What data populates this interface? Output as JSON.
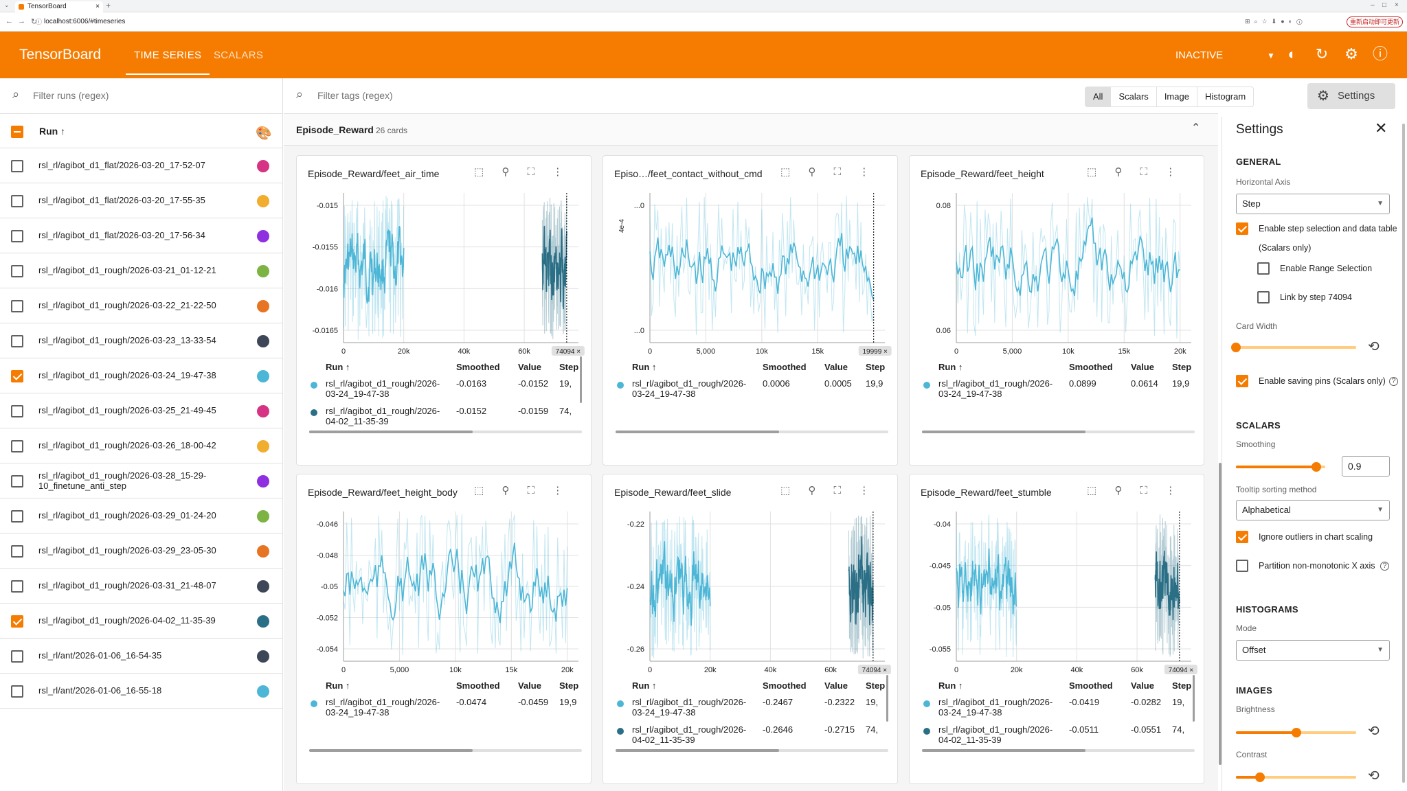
{
  "browser": {
    "tab_title": "TensorBoard",
    "url": "localhost:6006/#timeseries",
    "relaunch_label": "重新启动即可更新"
  },
  "header": {
    "brand": "TensorBoard",
    "tabs": [
      {
        "label": "TIME SERIES"
      },
      {
        "label": "SCALARS"
      }
    ],
    "status": "INACTIVE"
  },
  "runs_panel": {
    "filter_placeholder": "Filter runs (regex)",
    "column_label": "Run ↑",
    "runs": [
      {
        "name": "rsl_rl/agibot_d1_flat/2026-03-20_17-52-07",
        "checked": false,
        "color": "#d63384"
      },
      {
        "name": "rsl_rl/agibot_d1_flat/2026-03-20_17-55-35",
        "checked": false,
        "color": "#f0ad2e"
      },
      {
        "name": "rsl_rl/agibot_d1_flat/2026-03-20_17-56-34",
        "checked": false,
        "color": "#8e2fe0"
      },
      {
        "name": "rsl_rl/agibot_d1_rough/2026-03-21_01-12-21",
        "checked": false,
        "color": "#7cb342"
      },
      {
        "name": "rsl_rl/agibot_d1_rough/2026-03-22_21-22-50",
        "checked": false,
        "color": "#e67423"
      },
      {
        "name": "rsl_rl/agibot_d1_rough/2026-03-23_13-33-54",
        "checked": false,
        "color": "#3d4758"
      },
      {
        "name": "rsl_rl/agibot_d1_rough/2026-03-24_19-47-38",
        "checked": true,
        "color": "#4db6d6"
      },
      {
        "name": "rsl_rl/agibot_d1_rough/2026-03-25_21-49-45",
        "checked": false,
        "color": "#d63384"
      },
      {
        "name": "rsl_rl/agibot_d1_rough/2026-03-26_18-00-42",
        "checked": false,
        "color": "#f0ad2e"
      },
      {
        "name": "rsl_rl/agibot_d1_rough/2026-03-28_15-29-10_finetune_anti_step",
        "checked": false,
        "color": "#8e2fe0"
      },
      {
        "name": "rsl_rl/agibot_d1_rough/2026-03-29_01-24-20",
        "checked": false,
        "color": "#7cb342"
      },
      {
        "name": "rsl_rl/agibot_d1_rough/2026-03-29_23-05-30",
        "checked": false,
        "color": "#e67423"
      },
      {
        "name": "rsl_rl/agibot_d1_rough/2026-03-31_21-48-07",
        "checked": false,
        "color": "#3d4758"
      },
      {
        "name": "rsl_rl/agibot_d1_rough/2026-04-02_11-35-39",
        "checked": true,
        "color": "#2b6f86"
      },
      {
        "name": "rsl_rl/ant/2026-01-06_16-54-35",
        "checked": false,
        "color": "#3d4758"
      },
      {
        "name": "rsl_rl/ant/2026-01-06_16-55-18",
        "checked": false,
        "color": "#4db6d6"
      }
    ]
  },
  "main": {
    "filter_placeholder": "Filter tags (regex)",
    "type_toggles": [
      {
        "label": "All",
        "selected": true
      },
      {
        "label": "Scalars"
      },
      {
        "label": "Image"
      },
      {
        "label": "Histogram"
      }
    ],
    "settings_button": "Settings",
    "group_title": "Episode_Reward",
    "group_count": "26 cards",
    "table_headers": {
      "run": "Run ↑",
      "smoothed": "Smoothed",
      "value": "Value",
      "step": "Step"
    },
    "cards": [
      {
        "title": "Episode_Reward/feet_air_time",
        "rows": [
          {
            "run": "rsl_rl/agibot_d1_rough/2026-03-24_19-47-38",
            "smoothed": "-0.0163",
            "value": "-0.0152",
            "step": "19,",
            "color": "#4db6d6"
          },
          {
            "run": "rsl_rl/agibot_d1_rough/2026-04-02_11-35-39",
            "smoothed": "-0.0152",
            "value": "-0.0159",
            "step": "74,",
            "color": "#2b6f86"
          }
        ]
      },
      {
        "title": "Episo…/feet_contact_without_cmd",
        "rows": [
          {
            "run": "rsl_rl/agibot_d1_rough/2026-03-24_19-47-38",
            "smoothed": "0.0006",
            "value": "0.0005",
            "step": "19,9",
            "color": "#4db6d6"
          }
        ]
      },
      {
        "title": "Episode_Reward/feet_height",
        "rows": [
          {
            "run": "rsl_rl/agibot_d1_rough/2026-03-24_19-47-38",
            "smoothed": "0.0899",
            "value": "0.0614",
            "step": "19,9",
            "color": "#4db6d6"
          }
        ]
      },
      {
        "title": "Episode_Reward/feet_height_body",
        "rows": [
          {
            "run": "rsl_rl/agibot_d1_rough/2026-03-24_19-47-38",
            "smoothed": "-0.0474",
            "value": "-0.0459",
            "step": "19,9",
            "color": "#4db6d6"
          }
        ]
      },
      {
        "title": "Episode_Reward/feet_slide",
        "rows": [
          {
            "run": "rsl_rl/agibot_d1_rough/2026-03-24_19-47-38",
            "smoothed": "-0.2467",
            "value": "-0.2322",
            "step": "19,",
            "color": "#4db6d6"
          },
          {
            "run": "rsl_rl/agibot_d1_rough/2026-04-02_11-35-39",
            "smoothed": "-0.2646",
            "value": "-0.2715",
            "step": "74,",
            "color": "#2b6f86"
          }
        ]
      },
      {
        "title": "Episode_Reward/feet_stumble",
        "rows": [
          {
            "run": "rsl_rl/agibot_d1_rough/2026-03-24_19-47-38",
            "smoothed": "-0.0419",
            "value": "-0.0282",
            "step": "19,",
            "color": "#4db6d6"
          },
          {
            "run": "rsl_rl/agibot_d1_rough/2026-04-02_11-35-39",
            "smoothed": "-0.0511",
            "value": "-0.0551",
            "step": "74,",
            "color": "#2b6f86"
          }
        ]
      }
    ]
  },
  "chart_data": [
    {
      "type": "line",
      "title": "Episode_Reward/feet_air_time",
      "x_ticks": [
        "0",
        "20k",
        "40k",
        "60k"
      ],
      "y_ticks": [
        "-0.015",
        "-0.0155",
        "-0.016",
        "-0.0165"
      ],
      "step_marker": "74094",
      "series": [
        {
          "name": "rsl_rl/agibot_d1_rough/2026-03-24_19-47-38",
          "color": "#4db6d6",
          "x_range": [
            0,
            19999
          ],
          "y_range": [
            -0.0167,
            -0.0149
          ]
        },
        {
          "name": "rsl_rl/agibot_d1_rough/2026-04-02_11-35-39",
          "color": "#2b6f86",
          "x_range": [
            66000,
            74094
          ],
          "y_range": [
            -0.0162,
            -0.0148
          ]
        }
      ]
    },
    {
      "type": "line",
      "title": "Episo…/feet_contact_without_cmd",
      "x_ticks": [
        "0",
        "5,000",
        "10k",
        "15k"
      ],
      "y_ticks": [
        "...0",
        "...0"
      ],
      "y_unit": "4e-4",
      "step_marker": "19999",
      "series": [
        {
          "name": "rsl_rl/agibot_d1_rough/2026-03-24_19-47-38",
          "color": "#4db6d6",
          "x_range": [
            0,
            19999
          ]
        }
      ]
    },
    {
      "type": "line",
      "title": "Episode_Reward/feet_height",
      "x_ticks": [
        "0",
        "5,000",
        "10k",
        "15k",
        "20k"
      ],
      "y_ticks": [
        "0.08",
        "0.06"
      ],
      "series": [
        {
          "name": "rsl_rl/agibot_d1_rough/2026-03-24_19-47-38",
          "color": "#4db6d6",
          "x_range": [
            0,
            19999
          ],
          "y_range": [
            0.045,
            0.095
          ]
        }
      ]
    },
    {
      "type": "line",
      "title": "Episode_Reward/feet_height_body",
      "x_ticks": [
        "0",
        "5,000",
        "10k",
        "15k",
        "20k"
      ],
      "y_ticks": [
        "-0.046",
        "-0.048",
        "-0.05",
        "-0.052",
        "-0.054"
      ],
      "series": [
        {
          "name": "rsl_rl/agibot_d1_rough/2026-03-24_19-47-38",
          "color": "#4db6d6",
          "x_range": [
            0,
            19999
          ],
          "y_range": [
            -0.0555,
            -0.0455
          ]
        }
      ]
    },
    {
      "type": "line",
      "title": "Episode_Reward/feet_slide",
      "x_ticks": [
        "0",
        "20k",
        "40k",
        "60k"
      ],
      "y_ticks": [
        "-0.22",
        "-0.24",
        "-0.26"
      ],
      "step_marker": "74094",
      "series": [
        {
          "name": "rsl_rl/agibot_d1_rough/2026-03-24_19-47-38",
          "color": "#4db6d6",
          "x_range": [
            0,
            19999
          ],
          "y_range": [
            -0.27,
            -0.21
          ]
        },
        {
          "name": "rsl_rl/agibot_d1_rough/2026-04-02_11-35-39",
          "color": "#2b6f86",
          "x_range": [
            66000,
            74094
          ],
          "y_range": [
            -0.28,
            -0.255
          ]
        }
      ]
    },
    {
      "type": "line",
      "title": "Episode_Reward/feet_stumble",
      "x_ticks": [
        "0",
        "20k",
        "40k",
        "60k"
      ],
      "y_ticks": [
        "-0.04",
        "-0.045",
        "-0.05",
        "-0.055"
      ],
      "step_marker": "74094",
      "series": [
        {
          "name": "rsl_rl/agibot_d1_rough/2026-03-24_19-47-38",
          "color": "#4db6d6",
          "x_range": [
            0,
            19999
          ],
          "y_range": [
            -0.056,
            -0.038
          ]
        },
        {
          "name": "rsl_rl/agibot_d1_rough/2026-04-02_11-35-39",
          "color": "#2b6f86",
          "x_range": [
            66000,
            74094
          ],
          "y_range": [
            -0.057,
            -0.05
          ]
        }
      ]
    }
  ],
  "settings": {
    "title": "Settings",
    "general": "GENERAL",
    "horizontal_axis_label": "Horizontal Axis",
    "horizontal_axis_value": "Step",
    "enable_step_selection": "Enable step selection and data table",
    "scalars_only": "(Scalars only)",
    "enable_range_selection": "Enable Range Selection",
    "link_by_step": "Link by step 74094",
    "card_width": "Card Width",
    "enable_saving_pins": "Enable saving pins (Scalars only)",
    "scalars": "SCALARS",
    "smoothing_label": "Smoothing",
    "smoothing_value": "0.9",
    "tooltip_sorting_label": "Tooltip sorting method",
    "tooltip_sorting_value": "Alphabetical",
    "ignore_outliers": "Ignore outliers in chart scaling",
    "partition": "Partition non-monotonic X axis",
    "histograms": "HISTOGRAMS",
    "mode_label": "Mode",
    "mode_value": "Offset",
    "images": "IMAGES",
    "brightness": "Brightness",
    "contrast": "Contrast",
    "smoothing_fraction": 0.9,
    "card_width_fraction": 0.0,
    "brightness_fraction": 0.5,
    "contrast_fraction": 0.2
  }
}
